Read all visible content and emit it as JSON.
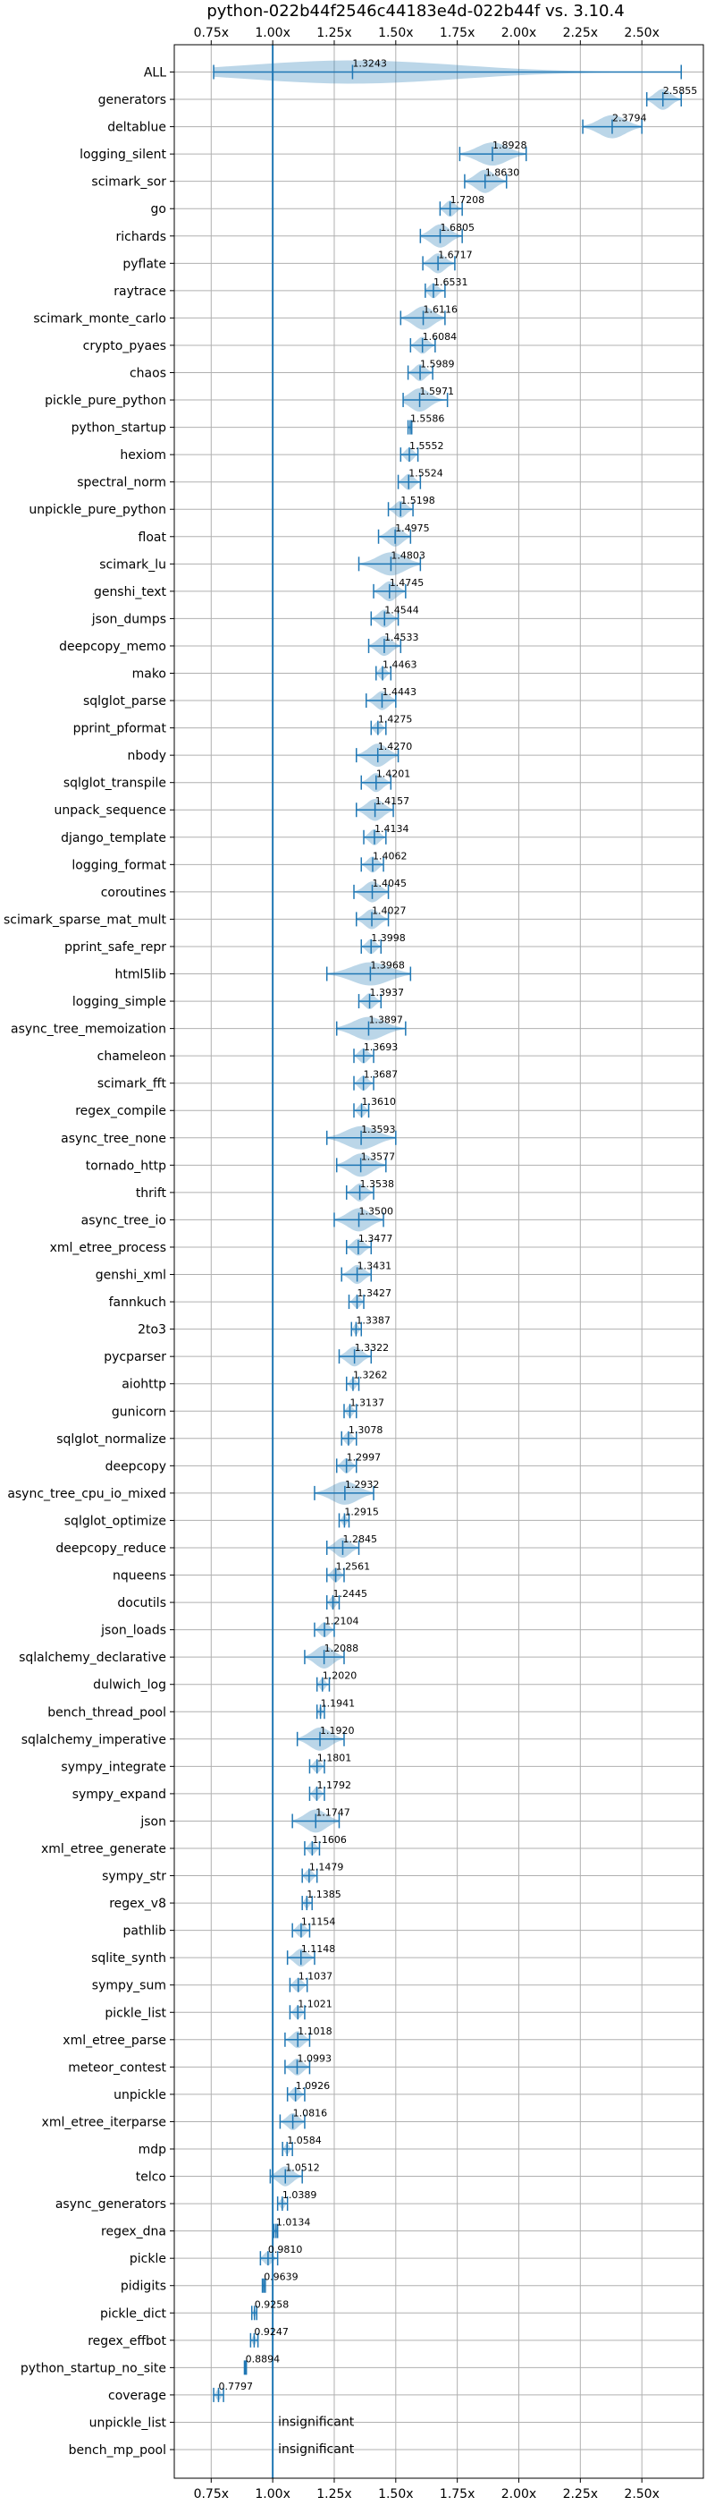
{
  "chart_data": {
    "type": "violin",
    "title": "python-022b44f2546c44183e4d-022b44f vs. 3.10.4",
    "xlim": [
      0.6,
      2.75
    ],
    "x_ticks": [
      0.75,
      1.0,
      1.25,
      1.5,
      1.75,
      2.0,
      2.25,
      2.5
    ],
    "x_tick_labels": [
      "0.75x",
      "1.00x",
      "1.25x",
      "1.50x",
      "1.75x",
      "2.00x",
      "2.25x",
      "2.50x"
    ],
    "reference_line": 1.0,
    "grid": true,
    "insignificant_label": "insignificant",
    "benchmarks": [
      {
        "name": "ALL",
        "value": 1.3243,
        "label": "1.3243",
        "low": 0.76,
        "high": 2.66
      },
      {
        "name": "generators",
        "value": 2.5855,
        "label": "2.5855",
        "low": 2.52,
        "high": 2.66
      },
      {
        "name": "deltablue",
        "value": 2.3794,
        "label": "2.3794",
        "low": 2.26,
        "high": 2.5
      },
      {
        "name": "logging_silent",
        "value": 1.8928,
        "label": "1.8928",
        "low": 1.76,
        "high": 2.03
      },
      {
        "name": "scimark_sor",
        "value": 1.863,
        "label": "1.8630",
        "low": 1.78,
        "high": 1.95
      },
      {
        "name": "go",
        "value": 1.7208,
        "label": "1.7208",
        "low": 1.68,
        "high": 1.77
      },
      {
        "name": "richards",
        "value": 1.6805,
        "label": "1.6805",
        "low": 1.6,
        "high": 1.77
      },
      {
        "name": "pyflate",
        "value": 1.6717,
        "label": "1.6717",
        "low": 1.61,
        "high": 1.74
      },
      {
        "name": "raytrace",
        "value": 1.6531,
        "label": "1.6531",
        "low": 1.62,
        "high": 1.7
      },
      {
        "name": "scimark_monte_carlo",
        "value": 1.6116,
        "label": "1.6116",
        "low": 1.52,
        "high": 1.7
      },
      {
        "name": "crypto_pyaes",
        "value": 1.6084,
        "label": "1.6084",
        "low": 1.56,
        "high": 1.66
      },
      {
        "name": "chaos",
        "value": 1.5989,
        "label": "1.5989",
        "low": 1.55,
        "high": 1.65
      },
      {
        "name": "pickle_pure_python",
        "value": 1.5971,
        "label": "1.5971",
        "low": 1.53,
        "high": 1.71
      },
      {
        "name": "python_startup",
        "value": 1.5586,
        "label": "1.5586",
        "low": 1.55,
        "high": 1.565
      },
      {
        "name": "hexiom",
        "value": 1.5552,
        "label": "1.5552",
        "low": 1.52,
        "high": 1.59
      },
      {
        "name": "spectral_norm",
        "value": 1.5524,
        "label": "1.5524",
        "low": 1.51,
        "high": 1.6
      },
      {
        "name": "unpickle_pure_python",
        "value": 1.5198,
        "label": "1.5198",
        "low": 1.47,
        "high": 1.57
      },
      {
        "name": "float",
        "value": 1.4975,
        "label": "1.4975",
        "low": 1.43,
        "high": 1.56
      },
      {
        "name": "scimark_lu",
        "value": 1.4803,
        "label": "1.4803",
        "low": 1.35,
        "high": 1.6
      },
      {
        "name": "genshi_text",
        "value": 1.4745,
        "label": "1.4745",
        "low": 1.41,
        "high": 1.54
      },
      {
        "name": "json_dumps",
        "value": 1.4544,
        "label": "1.4544",
        "low": 1.4,
        "high": 1.51
      },
      {
        "name": "deepcopy_memo",
        "value": 1.4533,
        "label": "1.4533",
        "low": 1.39,
        "high": 1.52
      },
      {
        "name": "mako",
        "value": 1.4463,
        "label": "1.4463",
        "low": 1.42,
        "high": 1.48
      },
      {
        "name": "sqlglot_parse",
        "value": 1.4443,
        "label": "1.4443",
        "low": 1.38,
        "high": 1.5
      },
      {
        "name": "pprint_pformat",
        "value": 1.4275,
        "label": "1.4275",
        "low": 1.4,
        "high": 1.46
      },
      {
        "name": "nbody",
        "value": 1.427,
        "label": "1.4270",
        "low": 1.34,
        "high": 1.51
      },
      {
        "name": "sqlglot_transpile",
        "value": 1.4201,
        "label": "1.4201",
        "low": 1.36,
        "high": 1.48
      },
      {
        "name": "unpack_sequence",
        "value": 1.4157,
        "label": "1.4157",
        "low": 1.34,
        "high": 1.49
      },
      {
        "name": "django_template",
        "value": 1.4134,
        "label": "1.4134",
        "low": 1.37,
        "high": 1.46
      },
      {
        "name": "logging_format",
        "value": 1.4062,
        "label": "1.4062",
        "low": 1.36,
        "high": 1.45
      },
      {
        "name": "coroutines",
        "value": 1.4045,
        "label": "1.4045",
        "low": 1.33,
        "high": 1.47
      },
      {
        "name": "scimark_sparse_mat_mult",
        "value": 1.4027,
        "label": "1.4027",
        "low": 1.34,
        "high": 1.47
      },
      {
        "name": "pprint_safe_repr",
        "value": 1.3998,
        "label": "1.3998",
        "low": 1.36,
        "high": 1.44
      },
      {
        "name": "html5lib",
        "value": 1.3968,
        "label": "1.3968",
        "low": 1.22,
        "high": 1.56
      },
      {
        "name": "logging_simple",
        "value": 1.3937,
        "label": "1.3937",
        "low": 1.35,
        "high": 1.44
      },
      {
        "name": "async_tree_memoization",
        "value": 1.3897,
        "label": "1.3897",
        "low": 1.26,
        "high": 1.54
      },
      {
        "name": "chameleon",
        "value": 1.3693,
        "label": "1.3693",
        "low": 1.33,
        "high": 1.41
      },
      {
        "name": "scimark_fft",
        "value": 1.3687,
        "label": "1.3687",
        "low": 1.33,
        "high": 1.41
      },
      {
        "name": "regex_compile",
        "value": 1.361,
        "label": "1.3610",
        "low": 1.33,
        "high": 1.39
      },
      {
        "name": "async_tree_none",
        "value": 1.3593,
        "label": "1.3593",
        "low": 1.22,
        "high": 1.5
      },
      {
        "name": "tornado_http",
        "value": 1.3577,
        "label": "1.3577",
        "low": 1.26,
        "high": 1.46
      },
      {
        "name": "thrift",
        "value": 1.3538,
        "label": "1.3538",
        "low": 1.3,
        "high": 1.41
      },
      {
        "name": "async_tree_io",
        "value": 1.35,
        "label": "1.3500",
        "low": 1.25,
        "high": 1.45
      },
      {
        "name": "xml_etree_process",
        "value": 1.3477,
        "label": "1.3477",
        "low": 1.3,
        "high": 1.4
      },
      {
        "name": "genshi_xml",
        "value": 1.3431,
        "label": "1.3431",
        "low": 1.28,
        "high": 1.4
      },
      {
        "name": "fannkuch",
        "value": 1.3427,
        "label": "1.3427",
        "low": 1.31,
        "high": 1.37
      },
      {
        "name": "2to3",
        "value": 1.3387,
        "label": "1.3387",
        "low": 1.32,
        "high": 1.36
      },
      {
        "name": "pycparser",
        "value": 1.3322,
        "label": "1.3322",
        "low": 1.27,
        "high": 1.4
      },
      {
        "name": "aiohttp",
        "value": 1.3262,
        "label": "1.3262",
        "low": 1.3,
        "high": 1.35
      },
      {
        "name": "gunicorn",
        "value": 1.3137,
        "label": "1.3137",
        "low": 1.29,
        "high": 1.34
      },
      {
        "name": "sqlglot_normalize",
        "value": 1.3078,
        "label": "1.3078",
        "low": 1.28,
        "high": 1.34
      },
      {
        "name": "deepcopy",
        "value": 1.2997,
        "label": "1.2997",
        "low": 1.26,
        "high": 1.34
      },
      {
        "name": "async_tree_cpu_io_mixed",
        "value": 1.2932,
        "label": "1.2932",
        "low": 1.17,
        "high": 1.41
      },
      {
        "name": "sqlglot_optimize",
        "value": 1.2915,
        "label": "1.2915",
        "low": 1.27,
        "high": 1.31
      },
      {
        "name": "deepcopy_reduce",
        "value": 1.2845,
        "label": "1.2845",
        "low": 1.22,
        "high": 1.35
      },
      {
        "name": "nqueens",
        "value": 1.2561,
        "label": "1.2561",
        "low": 1.22,
        "high": 1.29
      },
      {
        "name": "docutils",
        "value": 1.2445,
        "label": "1.2445",
        "low": 1.22,
        "high": 1.27
      },
      {
        "name": "json_loads",
        "value": 1.2104,
        "label": "1.2104",
        "low": 1.17,
        "high": 1.25
      },
      {
        "name": "sqlalchemy_declarative",
        "value": 1.2088,
        "label": "1.2088",
        "low": 1.13,
        "high": 1.29
      },
      {
        "name": "dulwich_log",
        "value": 1.202,
        "label": "1.2020",
        "low": 1.18,
        "high": 1.23
      },
      {
        "name": "bench_thread_pool",
        "value": 1.1941,
        "label": "1.1941",
        "low": 1.18,
        "high": 1.21
      },
      {
        "name": "sqlalchemy_imperative",
        "value": 1.192,
        "label": "1.1920",
        "low": 1.1,
        "high": 1.29
      },
      {
        "name": "sympy_integrate",
        "value": 1.1801,
        "label": "1.1801",
        "low": 1.15,
        "high": 1.21
      },
      {
        "name": "sympy_expand",
        "value": 1.1792,
        "label": "1.1792",
        "low": 1.15,
        "high": 1.21
      },
      {
        "name": "json",
        "value": 1.1747,
        "label": "1.1747",
        "low": 1.08,
        "high": 1.27
      },
      {
        "name": "xml_etree_generate",
        "value": 1.1606,
        "label": "1.1606",
        "low": 1.13,
        "high": 1.19
      },
      {
        "name": "sympy_str",
        "value": 1.1479,
        "label": "1.1479",
        "low": 1.12,
        "high": 1.18
      },
      {
        "name": "regex_v8",
        "value": 1.1385,
        "label": "1.1385",
        "low": 1.12,
        "high": 1.16
      },
      {
        "name": "pathlib",
        "value": 1.1154,
        "label": "1.1154",
        "low": 1.08,
        "high": 1.15
      },
      {
        "name": "sqlite_synth",
        "value": 1.1148,
        "label": "1.1148",
        "low": 1.06,
        "high": 1.17
      },
      {
        "name": "sympy_sum",
        "value": 1.1037,
        "label": "1.1037",
        "low": 1.07,
        "high": 1.14
      },
      {
        "name": "pickle_list",
        "value": 1.1021,
        "label": "1.1021",
        "low": 1.07,
        "high": 1.13
      },
      {
        "name": "xml_etree_parse",
        "value": 1.1018,
        "label": "1.1018",
        "low": 1.05,
        "high": 1.15
      },
      {
        "name": "meteor_contest",
        "value": 1.0993,
        "label": "1.0993",
        "low": 1.05,
        "high": 1.15
      },
      {
        "name": "unpickle",
        "value": 1.0926,
        "label": "1.0926",
        "low": 1.06,
        "high": 1.13
      },
      {
        "name": "xml_etree_iterparse",
        "value": 1.0816,
        "label": "1.0816",
        "low": 1.03,
        "high": 1.13
      },
      {
        "name": "mdp",
        "value": 1.0584,
        "label": "1.0584",
        "low": 1.04,
        "high": 1.08
      },
      {
        "name": "telco",
        "value": 1.0512,
        "label": "1.0512",
        "low": 0.99,
        "high": 1.12
      },
      {
        "name": "async_generators",
        "value": 1.0389,
        "label": "1.0389",
        "low": 1.02,
        "high": 1.06
      },
      {
        "name": "regex_dna",
        "value": 1.0134,
        "label": "1.0134",
        "low": 1.005,
        "high": 1.02
      },
      {
        "name": "pickle",
        "value": 0.981,
        "label": "0.9810",
        "low": 0.95,
        "high": 1.02
      },
      {
        "name": "pidigits",
        "value": 0.9639,
        "label": "0.9639",
        "low": 0.958,
        "high": 0.97
      },
      {
        "name": "pickle_dict",
        "value": 0.9258,
        "label": "0.9258",
        "low": 0.915,
        "high": 0.935
      },
      {
        "name": "regex_effbot",
        "value": 0.9247,
        "label": "0.9247",
        "low": 0.91,
        "high": 0.94
      },
      {
        "name": "python_startup_no_site",
        "value": 0.8894,
        "label": "0.8894",
        "low": 0.885,
        "high": 0.893
      },
      {
        "name": "coverage",
        "value": 0.7797,
        "label": "0.7797",
        "low": 0.76,
        "high": 0.8
      },
      {
        "name": "unpickle_list",
        "value": null,
        "label": "insignificant",
        "low": null,
        "high": null
      },
      {
        "name": "bench_mp_pool",
        "value": null,
        "label": "insignificant",
        "low": null,
        "high": null
      }
    ]
  }
}
